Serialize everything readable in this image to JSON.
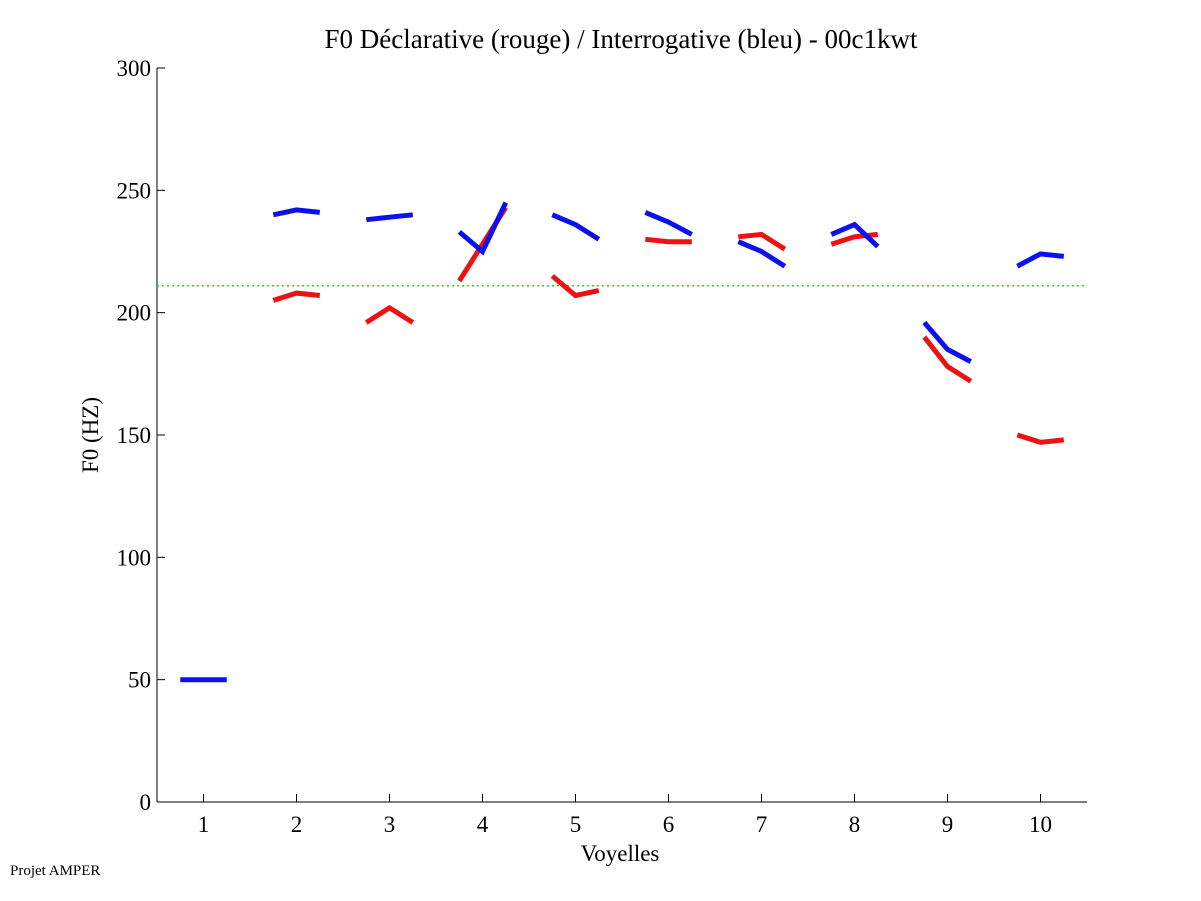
{
  "chart_data": {
    "type": "line",
    "title": "F0 Déclarative (rouge) / Interrogative (bleu) - 00c1kwt",
    "xlabel": "Voyelles",
    "ylabel": "F0 (HZ)",
    "xlim": [
      0.5,
      10.5
    ],
    "ylim": [
      0,
      300
    ],
    "x_ticks": [
      "1",
      "2",
      "3",
      "4",
      "5",
      "6",
      "7",
      "8",
      "9",
      "10"
    ],
    "y_ticks": [
      "0",
      "50",
      "100",
      "150",
      "200",
      "250",
      "300"
    ],
    "grid": false,
    "reference_line": {
      "y": 211,
      "color": "#33cc33",
      "style": "dotted"
    },
    "series": [
      {
        "color": "#ee1111",
        "segments": [
          {
            "x": [
              1.75,
              2.0,
              2.25
            ],
            "y": [
              205,
              208,
              207
            ]
          },
          {
            "x": [
              2.75,
              3.0,
              3.25
            ],
            "y": [
              196,
              202,
              196
            ]
          },
          {
            "x": [
              3.75,
              4.0,
              4.25
            ],
            "y": [
              213,
              228,
              243
            ]
          },
          {
            "x": [
              4.75,
              5.0,
              5.25
            ],
            "y": [
              215,
              207,
              209
            ]
          },
          {
            "x": [
              5.75,
              6.0,
              6.25
            ],
            "y": [
              230,
              229,
              229
            ]
          },
          {
            "x": [
              6.75,
              7.0,
              7.25
            ],
            "y": [
              231,
              232,
              226
            ]
          },
          {
            "x": [
              7.75,
              8.0,
              8.25
            ],
            "y": [
              228,
              231,
              232
            ]
          },
          {
            "x": [
              8.75,
              9.0,
              9.25
            ],
            "y": [
              190,
              178,
              172
            ]
          },
          {
            "x": [
              9.75,
              10.0,
              10.25
            ],
            "y": [
              150,
              147,
              148
            ]
          }
        ]
      },
      {
        "color": "#0b11ee",
        "segments": [
          {
            "x": [
              0.75,
              1.0,
              1.25
            ],
            "y": [
              50,
              50,
              50
            ]
          },
          {
            "x": [
              1.75,
              2.0,
              2.25
            ],
            "y": [
              240,
              242,
              241
            ]
          },
          {
            "x": [
              2.75,
              3.0,
              3.25
            ],
            "y": [
              238,
              239,
              240
            ]
          },
          {
            "x": [
              3.75,
              4.0,
              4.25
            ],
            "y": [
              233,
              225,
              245
            ]
          },
          {
            "x": [
              4.75,
              5.0,
              5.25
            ],
            "y": [
              240,
              236,
              230
            ]
          },
          {
            "x": [
              5.75,
              6.0,
              6.25
            ],
            "y": [
              241,
              237,
              232
            ]
          },
          {
            "x": [
              6.75,
              7.0,
              7.25
            ],
            "y": [
              229,
              225,
              219
            ]
          },
          {
            "x": [
              7.75,
              8.0,
              8.25
            ],
            "y": [
              232,
              236,
              227
            ]
          },
          {
            "x": [
              8.75,
              9.0,
              9.25
            ],
            "y": [
              196,
              185,
              180
            ]
          },
          {
            "x": [
              9.75,
              10.0,
              10.25
            ],
            "y": [
              219,
              224,
              223
            ]
          }
        ]
      }
    ]
  },
  "footer": {
    "note": "Projet AMPER"
  }
}
